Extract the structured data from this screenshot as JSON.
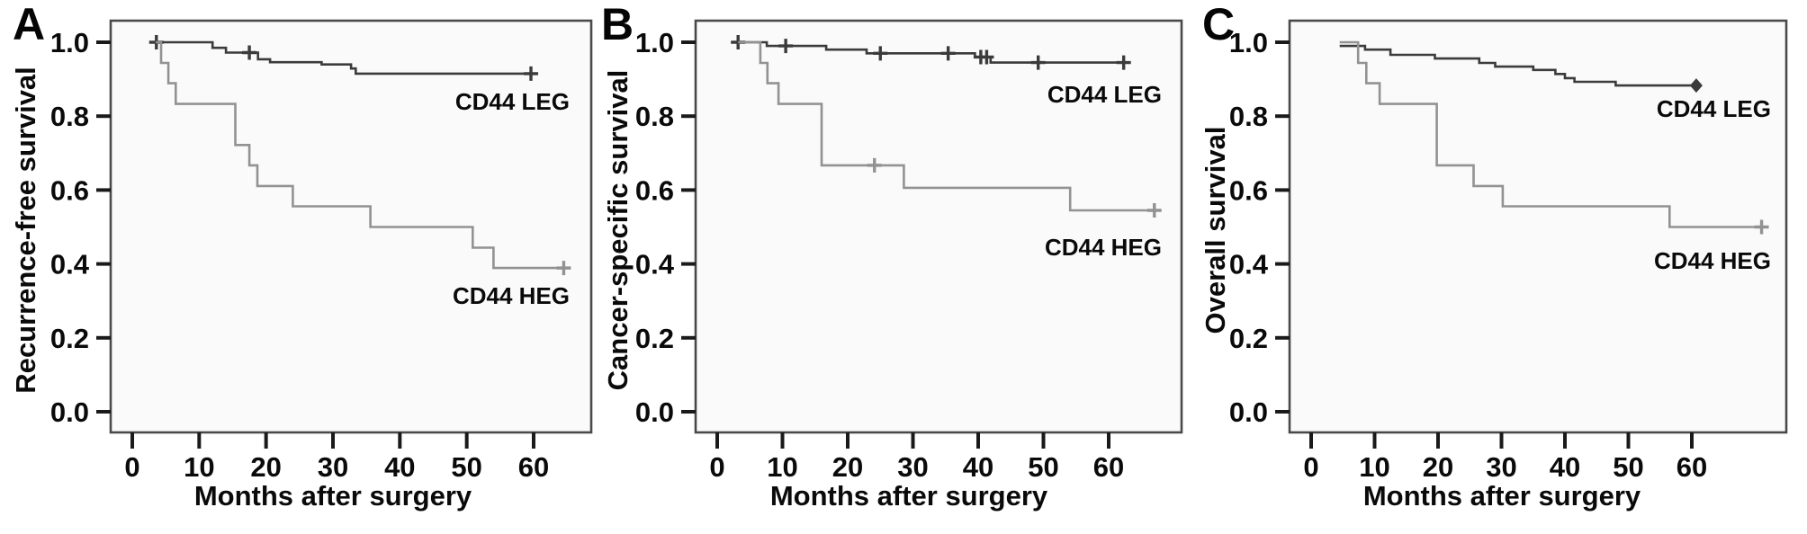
{
  "colors": {
    "leg_line": "#3b3b3b",
    "heg_line": "#929292",
    "axis_border": "#4a4a4a",
    "tick": "#1a1a1a",
    "text": "#0a0a0a",
    "plot_background": "#fafafa",
    "page_background": "#ffffff"
  },
  "chart_data": [
    {
      "type": "line",
      "subtype": "kaplan-meier-step",
      "panel_label": "A",
      "xlabel": "Months after surgery",
      "ylabel": "Recurrence-free survival",
      "xticks": [
        "0",
        "10",
        "20",
        "30",
        "40",
        "50",
        "60"
      ],
      "xtick_values": [
        0,
        10,
        20,
        30,
        40,
        50,
        60
      ],
      "yticks": [
        "1.0",
        "0.8",
        "0.6",
        "0.4",
        "0.2",
        "0.0"
      ],
      "ytick_values": [
        1.0,
        0.8,
        0.6,
        0.4,
        0.2,
        0.0
      ],
      "xlim": [
        -3.2,
        68.6
      ],
      "ylim": [
        -0.055,
        1.056
      ],
      "grid": false,
      "legend": "inline-annotations",
      "series": [
        {
          "name": "CD44 LEG",
          "shade": "dark",
          "start": [
            3.5,
            1.0
          ],
          "steps": [
            [
              12,
              0.985
            ],
            [
              14,
              0.972
            ],
            [
              18.8,
              0.954
            ],
            [
              20.6,
              0.946
            ],
            [
              28.3,
              0.94
            ],
            [
              32.7,
              0.929
            ],
            [
              33.4,
              0.915
            ]
          ],
          "end_month": 59.6,
          "censor_marks": [
            [
              3.6,
              1.0
            ],
            [
              17.5,
              0.972
            ],
            [
              59.6,
              0.915
            ]
          ],
          "end_marker": "plus"
        },
        {
          "name": "CD44 HEG",
          "shade": "light",
          "start": [
            3.5,
            1.0
          ],
          "steps": [
            [
              4.3,
              0.944
            ],
            [
              5.4,
              0.889
            ],
            [
              6.5,
              0.833
            ],
            [
              15.4,
              0.722
            ],
            [
              17.5,
              0.667
            ],
            [
              18.7,
              0.611
            ],
            [
              24,
              0.556
            ],
            [
              35.6,
              0.5
            ],
            [
              50.9,
              0.444
            ],
            [
              54,
              0.389
            ]
          ],
          "end_month": 64.5,
          "censor_marks": [
            [
              64.5,
              0.389
            ]
          ],
          "end_marker": "plus"
        }
      ]
    },
    {
      "type": "line",
      "subtype": "kaplan-meier-step",
      "panel_label": "B",
      "xlabel": "Months after surgery",
      "ylabel": "Cancer-specific survival",
      "xticks": [
        "0",
        "10",
        "20",
        "30",
        "40",
        "50",
        "60"
      ],
      "xtick_values": [
        0,
        10,
        20,
        30,
        40,
        50,
        60
      ],
      "yticks": [
        "1.0",
        "0.8",
        "0.6",
        "0.4",
        "0.2",
        "0.0"
      ],
      "ytick_values": [
        1.0,
        0.8,
        0.6,
        0.4,
        0.2,
        0.0
      ],
      "xlim": [
        -3.3,
        71.2
      ],
      "ylim": [
        -0.055,
        1.056
      ],
      "grid": false,
      "legend": "inline-annotations",
      "series": [
        {
          "name": "CD44 LEG",
          "shade": "dark",
          "start": [
            3.2,
            1.0
          ],
          "steps": [
            [
              7.6,
              0.99
            ],
            [
              16.7,
              0.98
            ],
            [
              22.9,
              0.97
            ],
            [
              39.5,
              0.96
            ],
            [
              41.9,
              0.945
            ]
          ],
          "end_month": 62.3,
          "censor_marks": [
            [
              3.2,
              1.0
            ],
            [
              10.5,
              0.99
            ],
            [
              25,
              0.97
            ],
            [
              35.4,
              0.97
            ],
            [
              40.4,
              0.96
            ],
            [
              41.3,
              0.96
            ],
            [
              49.2,
              0.945
            ],
            [
              62.3,
              0.945
            ]
          ],
          "end_marker": "plus"
        },
        {
          "name": "CD44 HEG",
          "shade": "light",
          "start": [
            3.2,
            1.0
          ],
          "steps": [
            [
              6.6,
              0.944
            ],
            [
              7.7,
              0.889
            ],
            [
              9.4,
              0.833
            ],
            [
              16,
              0.667
            ],
            [
              28.6,
              0.606
            ],
            [
              54.1,
              0.545
            ]
          ],
          "end_month": 67,
          "censor_marks": [
            [
              24.1,
              0.667
            ],
            [
              67,
              0.545
            ]
          ],
          "end_marker": "plus"
        }
      ]
    },
    {
      "type": "line",
      "subtype": "kaplan-meier-step",
      "panel_label": "C",
      "xlabel": "Months after surgery",
      "ylabel": "Overall survival",
      "xticks": [
        "0",
        "10",
        "20",
        "30",
        "40",
        "50",
        "60"
      ],
      "xtick_values": [
        0,
        10,
        20,
        30,
        40,
        50,
        60
      ],
      "yticks": [
        "1.0",
        "0.8",
        "0.6",
        "0.4",
        "0.2",
        "0.0"
      ],
      "ytick_values": [
        1.0,
        0.8,
        0.6,
        0.4,
        0.2,
        0.0
      ],
      "xlim": [
        -3.4,
        74.9
      ],
      "ylim": [
        -0.055,
        1.056
      ],
      "grid": false,
      "legend": "inline-annotations",
      "series": [
        {
          "name": "CD44 LEG",
          "shade": "dark",
          "start": [
            4.5,
            0.99
          ],
          "steps": [
            [
              8.5,
              0.98
            ],
            [
              12.5,
              0.966
            ],
            [
              19.5,
              0.956
            ],
            [
              26.5,
              0.944
            ],
            [
              29,
              0.934
            ],
            [
              35,
              0.925
            ],
            [
              38.5,
              0.914
            ],
            [
              40,
              0.903
            ],
            [
              41.5,
              0.893
            ],
            [
              48,
              0.883
            ]
          ],
          "end_month": 60.7,
          "censor_marks": [
            [
              60.7,
              0.883
            ]
          ],
          "end_marker": "diamond"
        },
        {
          "name": "CD44 HEG",
          "shade": "light",
          "start": [
            4.5,
            1.0
          ],
          "steps": [
            [
              7.4,
              0.944
            ],
            [
              8.7,
              0.889
            ],
            [
              10.8,
              0.833
            ],
            [
              19.8,
              0.667
            ],
            [
              25.6,
              0.611
            ],
            [
              30.2,
              0.556
            ],
            [
              56.5,
              0.5
            ]
          ],
          "end_month": 71,
          "censor_marks": [
            [
              71,
              0.5
            ]
          ],
          "end_marker": "plus"
        }
      ]
    }
  ]
}
